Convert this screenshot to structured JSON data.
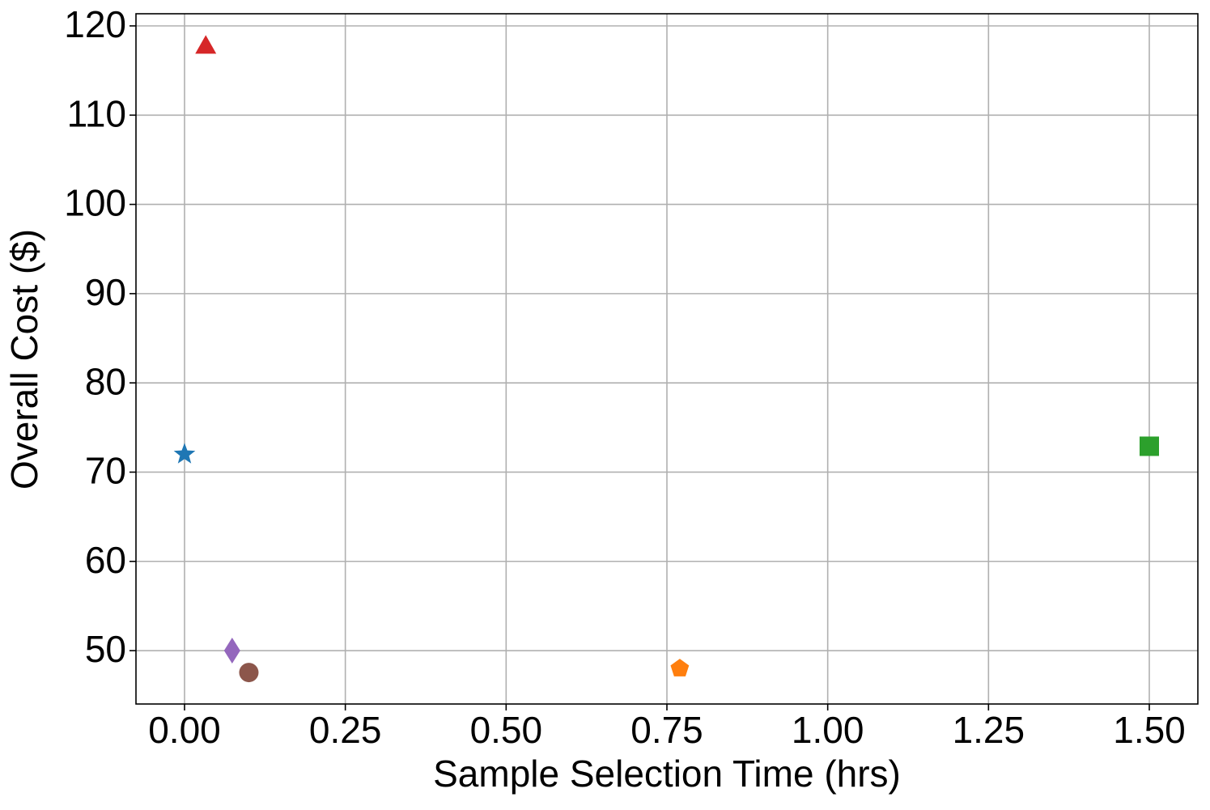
{
  "chart_data": {
    "type": "scatter",
    "x_label": "Sample Selection Time (hrs)",
    "y_label": "Overall Cost ($)",
    "xlim": [
      -0.0755,
      1.5755
    ],
    "ylim": [
      44.02,
      121.36
    ],
    "xticks": [
      {
        "value": 0,
        "label": "0.00"
      },
      {
        "value": 0.25,
        "label": "0.25"
      },
      {
        "value": 0.5,
        "label": "0.50"
      },
      {
        "value": 0.75,
        "label": "0.75"
      },
      {
        "value": 1,
        "label": "1.00"
      },
      {
        "value": 1.25,
        "label": "1.25"
      },
      {
        "value": 1.5,
        "label": "1.50"
      }
    ],
    "yticks": [
      50,
      60,
      70,
      80,
      90,
      100,
      110,
      120
    ],
    "grid": true,
    "series": [
      {
        "color": "#1f77b4",
        "marker": "star",
        "x": [
          0
        ],
        "values": [
          72
        ]
      },
      {
        "color": "#ff7f0e",
        "marker": "pentagon",
        "x": [
          0.77
        ],
        "values": [
          48
        ]
      },
      {
        "color": "#2ca02c",
        "marker": "square",
        "x": [
          1.5
        ],
        "values": [
          72.9
        ]
      },
      {
        "color": "#d62728",
        "marker": "triangle",
        "x": [
          0.033
        ],
        "values": [
          117.7
        ]
      },
      {
        "color": "#9467bd",
        "marker": "diamond",
        "x": [
          0.074
        ],
        "values": [
          50
        ]
      },
      {
        "color": "#8c564b",
        "marker": "circle",
        "x": [
          0.1
        ],
        "values": [
          47.55
        ]
      }
    ]
  }
}
